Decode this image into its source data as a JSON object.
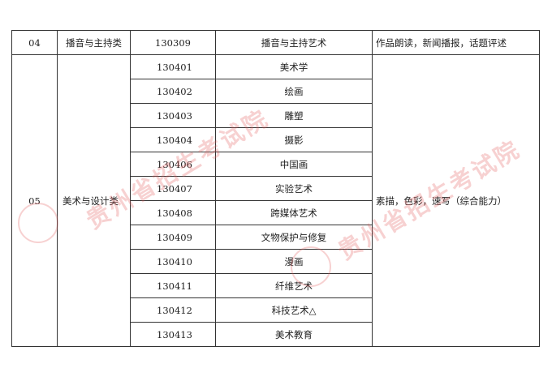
{
  "rows_top": {
    "index": "04",
    "category": "播音与主持类",
    "code": "130309",
    "major": "播音与主持艺术",
    "exam": "作品朗读，新闻播报，话题评述"
  },
  "group": {
    "index": "05",
    "category": "美术与设计类",
    "exam": "素描，色彩，速写（综合能力）",
    "majors": [
      {
        "code": "130401",
        "name": "美术学"
      },
      {
        "code": "130402",
        "name": "绘画"
      },
      {
        "code": "130403",
        "name": "雕塑"
      },
      {
        "code": "130404",
        "name": "摄影"
      },
      {
        "code": "130406",
        "name": "中国画"
      },
      {
        "code": "130407",
        "name": "实验艺术"
      },
      {
        "code": "130408",
        "name": "跨媒体艺术"
      },
      {
        "code": "130409",
        "name": "文物保护与修复"
      },
      {
        "code": "130410",
        "name": "漫画"
      },
      {
        "code": "130411",
        "name": "纤维艺术"
      },
      {
        "code": "130412",
        "name": "科技艺术△"
      },
      {
        "code": "130413",
        "name": "美术教育"
      }
    ]
  },
  "watermark": {
    "text": "贵州省招生考试院",
    "color": "#e15a5a"
  }
}
